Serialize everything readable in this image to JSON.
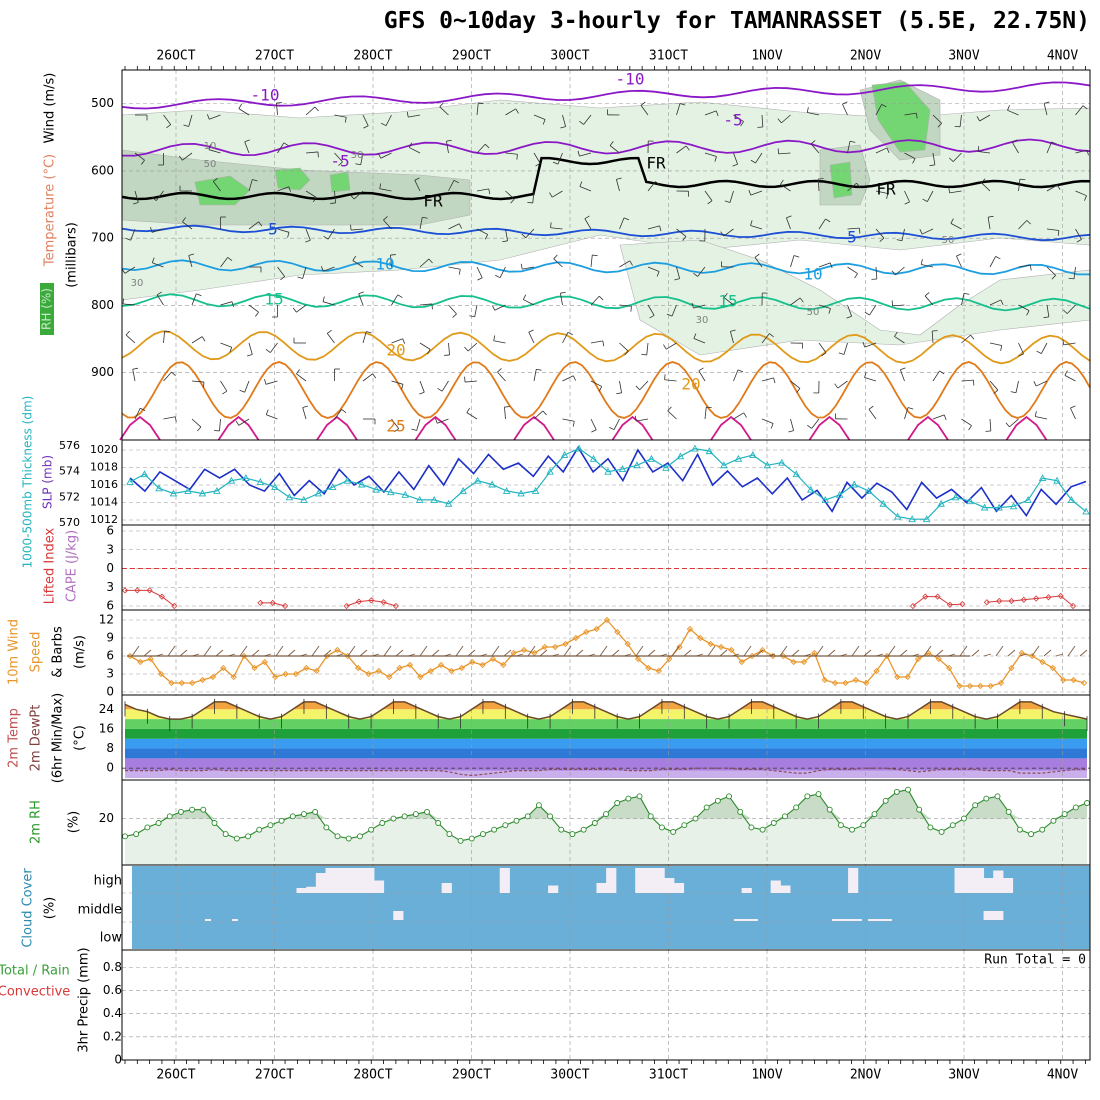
{
  "title": "GFS 0~10day 3-hourly for TAMANRASSET (5.5E, 22.75N)",
  "dates": [
    "26OCT",
    "27OCT",
    "28OCT",
    "29OCT",
    "30OCT",
    "31OCT",
    "1NOV",
    "2NOV",
    "3NOV",
    "4NOV"
  ],
  "colors": {
    "grid": "#9a9a9a",
    "rh_light": "#e4f2e4",
    "rh_mid": "#c2d7c2",
    "rh_green": "#73d673",
    "wind_barb": "#303030",
    "temp_m10": "#8b18c6",
    "temp_m5": "#8b18c6",
    "temp_fr": "#000000",
    "temp_5": "#1c4fd4",
    "temp_10": "#1d9ee0",
    "temp_15": "#15c08c",
    "temp_20": "#e09a1a",
    "temp_25": "#e07a1a",
    "temp_30": "#d01a8c",
    "slp": "#1c30c8",
    "thick": "#22b4bf",
    "li": "#d83838",
    "wind10m": "#e8962a",
    "barb10m": "#7a5a40",
    "cloud_bg": "#6aafd8",
    "cloud_gap": "#f3eef6",
    "rh2m_fill": "#ccdfcc",
    "rh2m_line": "#2a8a2a"
  },
  "chart_data": [
    {
      "type": "line",
      "panel": "upper-air cross section",
      "ylabels": [
        "Temperature (°C)",
        "Wind (m/s)",
        "(millibars)"
      ],
      "rh_legend": "RH (%)",
      "yticks": [
        500,
        600,
        700,
        800,
        900
      ],
      "ylim": [
        1000,
        450
      ],
      "contour_labels": [
        {
          "text": "-10",
          "color": "temp_m10"
        },
        {
          "text": "-10",
          "color": "temp_m10"
        },
        {
          "text": "-5",
          "color": "temp_m5"
        },
        {
          "text": "-5",
          "color": "temp_m5"
        },
        {
          "text": "FR",
          "color": "temp_fr"
        },
        {
          "text": "FR",
          "color": "temp_fr"
        },
        {
          "text": "FR",
          "color": "temp_fr"
        },
        {
          "text": "5",
          "color": "temp_5"
        },
        {
          "text": "5",
          "color": "temp_5"
        },
        {
          "text": "10",
          "color": "temp_10"
        },
        {
          "text": "10",
          "color": "temp_10"
        },
        {
          "text": "15",
          "color": "temp_15"
        },
        {
          "text": "15",
          "color": "temp_15"
        },
        {
          "text": "20",
          "color": "temp_20"
        },
        {
          "text": "20",
          "color": "temp_20"
        },
        {
          "text": "25",
          "color": "temp_25"
        }
      ],
      "rh_labels": [
        "50",
        "30",
        "10",
        "50",
        "30",
        "30",
        "50"
      ]
    },
    {
      "type": "line",
      "panel": "thickness and SLP",
      "ylabel_left": "1000-500mb Thickness (dm)",
      "ylabel_right": "SLP (mb)",
      "ticks_thickness": [
        570,
        572,
        574,
        576
      ],
      "ticks_slp": [
        1012,
        1014,
        1016,
        1018,
        1020
      ],
      "series": [
        {
          "name": "SLP",
          "values": [
            1016.8,
            1015.3,
            1017.5,
            1016.5,
            1015.5,
            1017.8,
            1016.8,
            1017.8,
            1016,
            1015.3,
            1017.3,
            1014.8,
            1016.5,
            1015,
            1017.8,
            1016,
            1017,
            1015.2,
            1017.5,
            1015.5,
            1018.2,
            1016,
            1019,
            1017.3,
            1019.5,
            1017.8,
            1018.5,
            1017,
            1019.3,
            1017.5,
            1020.3,
            1017.5,
            1019,
            1016.5,
            1020,
            1017.5,
            1018.5,
            1016.5,
            1019.5,
            1016,
            1017.6,
            1015.8,
            1016.8,
            1015,
            1016.8,
            1014.3,
            1015.4,
            1013,
            1016.3,
            1014.5,
            1016.2,
            1015.2,
            1013.2,
            1016.3,
            1014.5,
            1015.5,
            1014,
            1015.7,
            1013,
            1014.8,
            1012.5,
            1015.5,
            1013.8,
            1015.8,
            1016.4
          ]
        },
        {
          "name": "Thickness",
          "values": [
            573.2,
            573.8,
            572.7,
            572.3,
            572.5,
            572.3,
            572.5,
            573.3,
            573.5,
            573.2,
            572.8,
            572,
            571.8,
            572.3,
            572.8,
            573.3,
            573,
            572.6,
            572.4,
            572.2,
            571.8,
            571.8,
            571.5,
            572.5,
            573.3,
            573,
            572.5,
            572.3,
            572.5,
            574,
            575.3,
            575.8,
            575,
            574,
            574.2,
            574.5,
            575,
            574.3,
            575.2,
            575.8,
            575.6,
            574.5,
            575,
            575.3,
            574.5,
            574.7,
            573.8,
            572.6,
            571.8,
            572.2,
            573,
            572.5,
            571.5,
            570.5,
            570.3,
            570.3,
            571.5,
            572,
            571.7,
            571.2,
            571.2,
            571.3,
            571.8,
            573.5,
            573.3,
            571.8,
            570.9
          ]
        }
      ]
    },
    {
      "type": "line",
      "panel": "CAPE and Lifted Index",
      "ylabel_left": "Lifted Index",
      "ylabel_right": "CAPE (J/kg)",
      "ticks_li": [
        -6,
        -3,
        0,
        3,
        6
      ],
      "ytick_labels": [
        "6",
        "3",
        "0",
        "3",
        "6"
      ],
      "series": [
        {
          "name": "Lifted Index",
          "segments": [
            {
              "start": 0,
              "values": [
                3.5,
                3.5,
                3.5,
                4.5,
                6
              ]
            },
            {
              "start": 11,
              "values": [
                5.5,
                5.5,
                6
              ]
            },
            {
              "start": 18,
              "values": [
                6,
                5.3,
                5.1,
                5.4,
                6
              ]
            },
            {
              "start": 64,
              "values": [
                6,
                4.5,
                4.5,
                5.8,
                5.7
              ]
            },
            {
              "start": 70,
              "values": [
                5.4,
                5.2,
                5.2,
                5,
                4.8,
                4.6,
                4.4,
                6
              ]
            }
          ]
        }
      ]
    },
    {
      "type": "line",
      "panel": "10m wind",
      "ylabel_left": "10m Wind",
      "ylabel_speed": "Speed",
      "ylabel_barbs": "& Barbs",
      "yunit": "(m/s)",
      "yticks": [
        0,
        3,
        6,
        9,
        12
      ],
      "series": [
        {
          "name": "Wind Speed",
          "values": [
            6,
            5,
            5.5,
            3,
            1.5,
            1.5,
            1.5,
            2,
            2.5,
            4,
            2.5,
            6,
            4,
            5,
            2.5,
            3,
            3,
            4,
            3.5,
            6,
            7,
            6,
            4,
            3,
            3.5,
            2.5,
            4,
            4.5,
            2.5,
            3.5,
            4.5,
            3.5,
            4,
            5,
            4.5,
            5.5,
            4.5,
            6.5,
            7,
            6.5,
            7.5,
            7.5,
            8,
            9,
            10,
            10.5,
            12,
            10,
            8,
            5.5,
            4,
            3.5,
            5.5,
            7.5,
            10.5,
            9,
            8,
            7.5,
            7,
            5,
            6,
            7,
            6,
            6,
            5,
            5,
            6.5,
            2,
            1.5,
            1.5,
            2,
            1.5,
            3.5,
            6,
            2.5,
            2.5,
            5.5,
            6.5,
            5.5,
            4,
            1,
            1,
            1,
            1,
            1.5,
            4,
            6.5,
            6,
            5,
            4,
            2,
            2,
            1.5
          ]
        }
      ]
    },
    {
      "type": "area",
      "panel": "2m temperature",
      "ylabel_1": "2m Temp",
      "ylabel_2": "2m DewPt",
      "ylabel_3": "(6hr Min/Max)",
      "yunit": "(°C)",
      "yticks": [
        0,
        8,
        16,
        24
      ],
      "series": [
        {
          "name": "2m Temp",
          "values": [
            26,
            24,
            23,
            21,
            20,
            20,
            21,
            24,
            27,
            27,
            25,
            23,
            21,
            20,
            21,
            24,
            27,
            27,
            25,
            23,
            21,
            20,
            21,
            24,
            27,
            27,
            25,
            23,
            21,
            20,
            21,
            24,
            27,
            27,
            25,
            23,
            21,
            20,
            21,
            24,
            27,
            27,
            25,
            23,
            21,
            20,
            21,
            24,
            27,
            27,
            25,
            23,
            21,
            20,
            21,
            24,
            27,
            27,
            25,
            23,
            21,
            20,
            21,
            24,
            27,
            27,
            25,
            23,
            21,
            20,
            21,
            24,
            27,
            27,
            25,
            23,
            21,
            20,
            21,
            24,
            27,
            27,
            25,
            23,
            22,
            21,
            20
          ]
        },
        {
          "name": "2m DewPt",
          "values": [
            -1,
            -1,
            -1,
            -1,
            -0.5,
            -1,
            -1,
            -1,
            -0.5,
            -1,
            -1,
            -1,
            -1,
            -1,
            -1,
            -1,
            -1,
            -1,
            -1,
            -1,
            -1,
            -1,
            -1,
            -1,
            -1,
            -1,
            -1,
            -1,
            -1,
            -1.5,
            -2.5,
            -3,
            -2.5,
            -2,
            -1.5,
            -1,
            -1,
            -1,
            -0.5,
            -0.5,
            -0.5,
            -0.5,
            -0.5,
            -0.5,
            -0.5,
            -1,
            -1,
            -1,
            -0.5,
            -0.5,
            -0.5,
            0,
            0,
            0,
            0,
            -0.5,
            -0.5,
            -0.5,
            -1,
            -1.5,
            -2,
            -2,
            -1,
            -0.5,
            -0.5,
            -0.5,
            0,
            0,
            0,
            -0.5,
            -1,
            -1.5,
            -1,
            -0.5,
            -0.5,
            -0.5,
            -0.5,
            -1,
            -1,
            -1,
            -2,
            -2,
            -2,
            -1.5,
            -1,
            -0.5,
            -0.5
          ]
        }
      ]
    },
    {
      "type": "area",
      "panel": "2m RH",
      "ylabel": "2m RH",
      "yunit": "(%)",
      "yticks": [
        20
      ],
      "series": [
        {
          "name": "2m RH",
          "values": [
            12,
            13,
            16,
            18,
            21,
            23,
            24,
            24,
            18,
            13,
            11,
            12,
            15,
            17,
            19,
            21,
            22,
            23,
            16,
            12,
            11,
            12,
            15,
            18,
            20,
            21,
            22,
            23,
            18,
            13,
            10,
            11,
            13,
            15,
            17,
            19,
            21,
            26,
            21,
            15,
            13,
            15,
            18,
            22,
            27,
            29,
            30,
            21,
            16,
            14,
            17,
            20,
            25,
            28,
            30,
            23,
            16,
            15,
            18,
            21,
            25,
            30,
            31,
            24,
            17,
            15,
            17,
            22,
            28,
            32,
            33,
            24,
            16,
            14,
            17,
            20,
            26,
            29,
            30,
            23,
            15,
            13,
            15,
            19,
            22,
            25,
            27
          ]
        }
      ]
    },
    {
      "type": "bar",
      "panel": "cloud cover",
      "ylabel": "Cloud Cover",
      "yunit": "(%)",
      "levels": [
        "high",
        "middle",
        "low"
      ],
      "gaps_high": [
        0,
        0,
        0,
        0,
        0,
        0,
        0,
        0,
        0,
        0,
        0,
        0,
        0,
        0,
        0,
        0,
        0,
        20,
        25,
        80,
        100,
        100,
        100,
        100,
        100,
        50,
        0,
        0,
        0,
        0,
        0,
        0,
        40,
        0,
        0,
        0,
        0,
        0,
        100,
        0,
        0,
        0,
        0,
        30,
        0,
        0,
        0,
        0,
        40,
        100,
        0,
        0,
        100,
        100,
        100,
        60,
        40,
        0,
        0,
        0,
        0,
        0,
        0,
        20,
        0,
        0,
        50,
        30,
        0,
        0,
        0,
        0,
        0,
        0,
        100,
        0,
        0,
        0,
        0,
        0,
        0,
        0,
        0,
        0,
        0,
        100,
        100,
        100,
        60,
        90,
        60,
        0,
        0,
        0,
        0,
        0,
        0,
        0,
        0
      ],
      "gaps_mid": [
        0,
        0,
        0,
        0,
        0,
        0,
        0,
        0,
        0,
        0,
        0,
        0,
        0,
        0,
        0,
        0,
        0,
        0,
        0,
        0,
        0,
        0,
        0,
        0,
        0,
        0,
        0,
        60,
        0,
        0,
        0,
        0,
        0,
        0,
        0,
        0,
        0,
        0,
        0,
        0,
        0,
        0,
        0,
        0,
        0,
        0,
        0,
        0,
        0,
        0,
        0,
        0,
        0,
        0,
        0,
        0,
        0,
        0,
        0,
        0,
        0,
        0,
        0,
        0,
        0,
        0,
        0,
        0,
        0,
        0,
        0,
        0,
        0,
        0,
        0,
        0,
        0,
        0,
        0,
        0,
        0,
        0,
        0,
        0,
        0,
        0,
        0,
        0,
        60,
        60,
        0,
        0,
        0,
        0,
        0,
        0,
        0
      ]
    },
    {
      "type": "bar",
      "panel": "3hr precipitation",
      "ylabel_left": "Total / Rain",
      "ylabel_left2": "Convective",
      "ylabel": "3hr Precip (mm)",
      "yticks": [
        0,
        0.2,
        0.4,
        0.6,
        0.8
      ],
      "ylim": [
        0,
        0.95
      ],
      "run_total": "Run Total = 0",
      "values": []
    }
  ]
}
